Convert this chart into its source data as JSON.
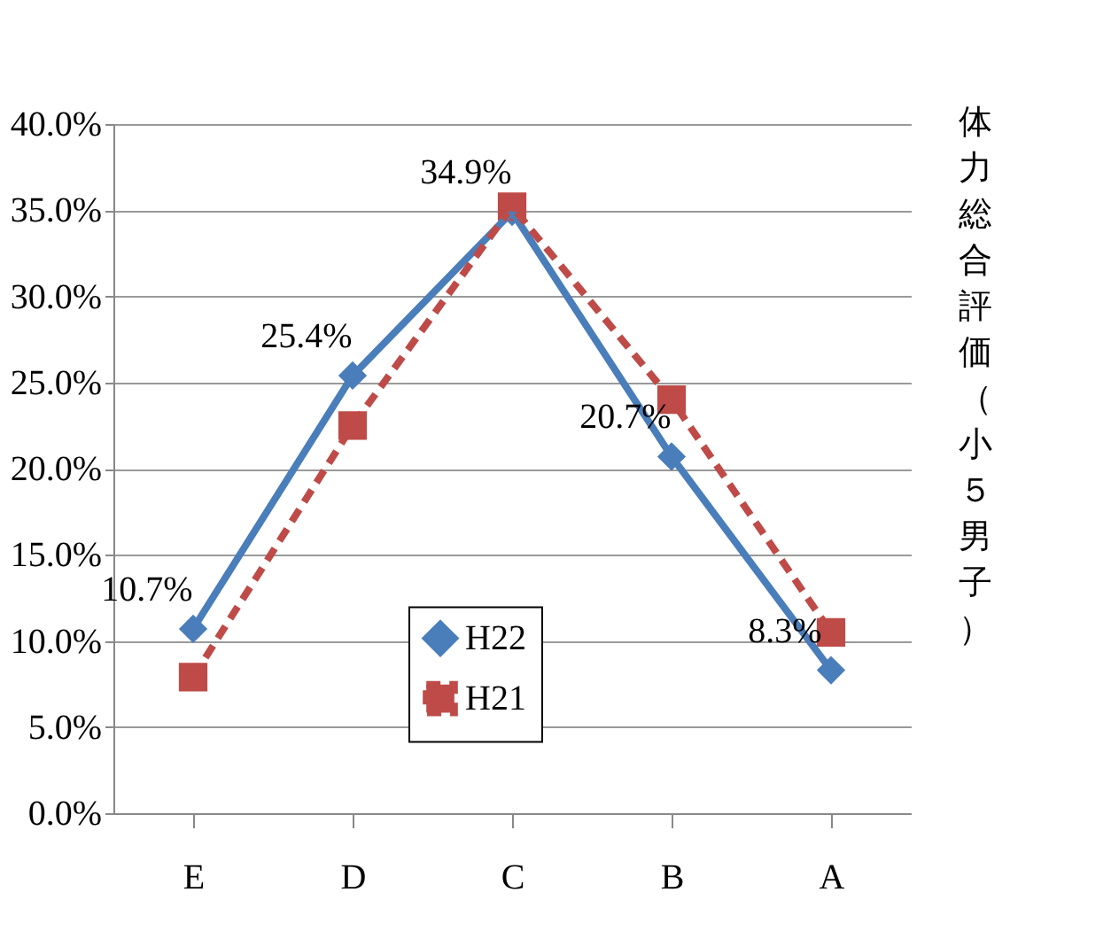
{
  "chart_data": {
    "type": "line",
    "title": "体力総合評価（小５男子）",
    "categories": [
      "E",
      "D",
      "C",
      "B",
      "A"
    ],
    "series": [
      {
        "name": "H22",
        "color": "#4a7ebb",
        "marker": "diamond",
        "line_style": "solid",
        "values": [
          10.7,
          25.4,
          34.9,
          20.7,
          8.3
        ],
        "value_labels": [
          "10.7%",
          "25.4%",
          "34.9%",
          "20.7%",
          "8.3%"
        ]
      },
      {
        "name": "H21",
        "color": "#be4b48",
        "marker": "square",
        "line_style": "dashed",
        "values": [
          7.9,
          22.5,
          35.2,
          24.0,
          10.5
        ]
      }
    ],
    "ylim": [
      0,
      40
    ],
    "yticks": [
      {
        "value": 0,
        "label": "0.0%"
      },
      {
        "value": 5,
        "label": "5.0%"
      },
      {
        "value": 10,
        "label": "10.0%"
      },
      {
        "value": 15,
        "label": "15.0%"
      },
      {
        "value": 20,
        "label": "20.0%"
      },
      {
        "value": 25,
        "label": "25.0%"
      },
      {
        "value": 30,
        "label": "30.0%"
      },
      {
        "value": 35,
        "label": "35.0%"
      },
      {
        "value": 40,
        "label": "40.0%"
      }
    ],
    "grid": "y",
    "legend": "bottom"
  }
}
